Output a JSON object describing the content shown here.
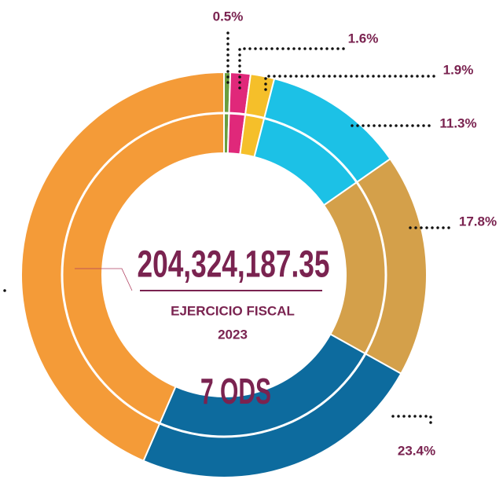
{
  "chart_data": {
    "type": "donut",
    "values": [
      0.5,
      1.6,
      1.9,
      11.3,
      17.8,
      23.4,
      43.5
    ],
    "value_labels": [
      "0.5%",
      "1.6%",
      "1.9%",
      "11.3%",
      "17.8%",
      "23.4%",
      null
    ],
    "colors": [
      "#6a9e3f",
      "#e0287a",
      "#f5bf2a",
      "#1cc1e6",
      "#d4a04a",
      "#0d6b9e",
      "#f49b38"
    ],
    "total": "204,324,187.35",
    "subtitle": "EJERCICIO FISCAL",
    "year": "2023",
    "note": "7 ODS"
  }
}
